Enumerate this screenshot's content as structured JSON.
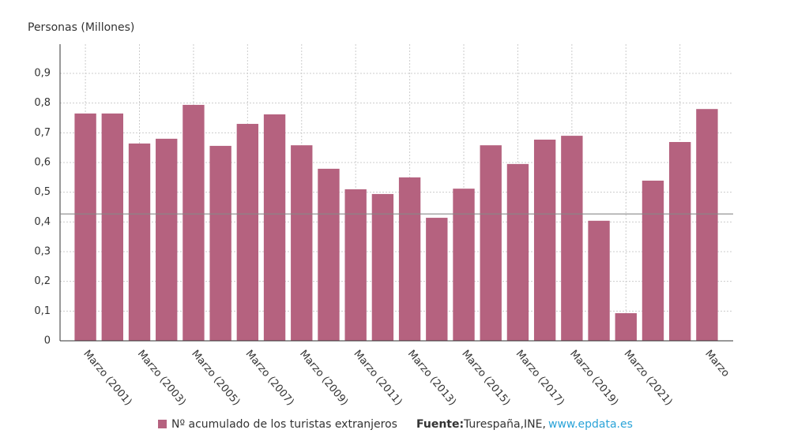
{
  "chart_data": {
    "type": "bar",
    "y_label": "Personas (Millones)",
    "categories": [
      "Marzo (2001)",
      null,
      "Marzo (2003)",
      null,
      "Marzo (2005)",
      null,
      "Marzo (2007)",
      null,
      "Marzo (2009)",
      null,
      "Marzo (2011)",
      null,
      "Marzo (2013)",
      null,
      "Marzo (2015)",
      null,
      "Marzo (2017)",
      null,
      "Marzo (2019)",
      null,
      "Marzo (2021)",
      null,
      null,
      "Marzo"
    ],
    "values": [
      0.765,
      0.765,
      0.664,
      0.68,
      0.794,
      0.656,
      0.73,
      0.762,
      0.658,
      0.579,
      0.51,
      0.494,
      0.55,
      0.414,
      0.512,
      0.658,
      0.595,
      0.677,
      0.69,
      0.404,
      0.093,
      0.539,
      0.669,
      0.78
    ],
    "color": "#b5627f",
    "reference_line": 0.427,
    "ylim": [
      0,
      1
    ],
    "yticks": [
      0,
      {
        "value": 0.1,
        "label": "0,1"
      },
      {
        "value": 0.2,
        "label": "0,2"
      },
      {
        "value": 0.3,
        "label": "0,3"
      },
      {
        "value": 0.4,
        "label": "0,4"
      },
      {
        "value": 0.5,
        "label": "0,5"
      },
      {
        "value": 0.6,
        "label": "0,6"
      },
      {
        "value": 0.7,
        "label": "0,7"
      },
      {
        "value": 0.8,
        "label": "0,8"
      },
      {
        "value": 0.9,
        "label": "0,9"
      }
    ],
    "grid": true,
    "legend": "Nº acumulado de los turistas extranjeros",
    "source_label": "Fuente:",
    "source_text": "Turespaña,INE,",
    "source_link": "www.epdata.es"
  }
}
